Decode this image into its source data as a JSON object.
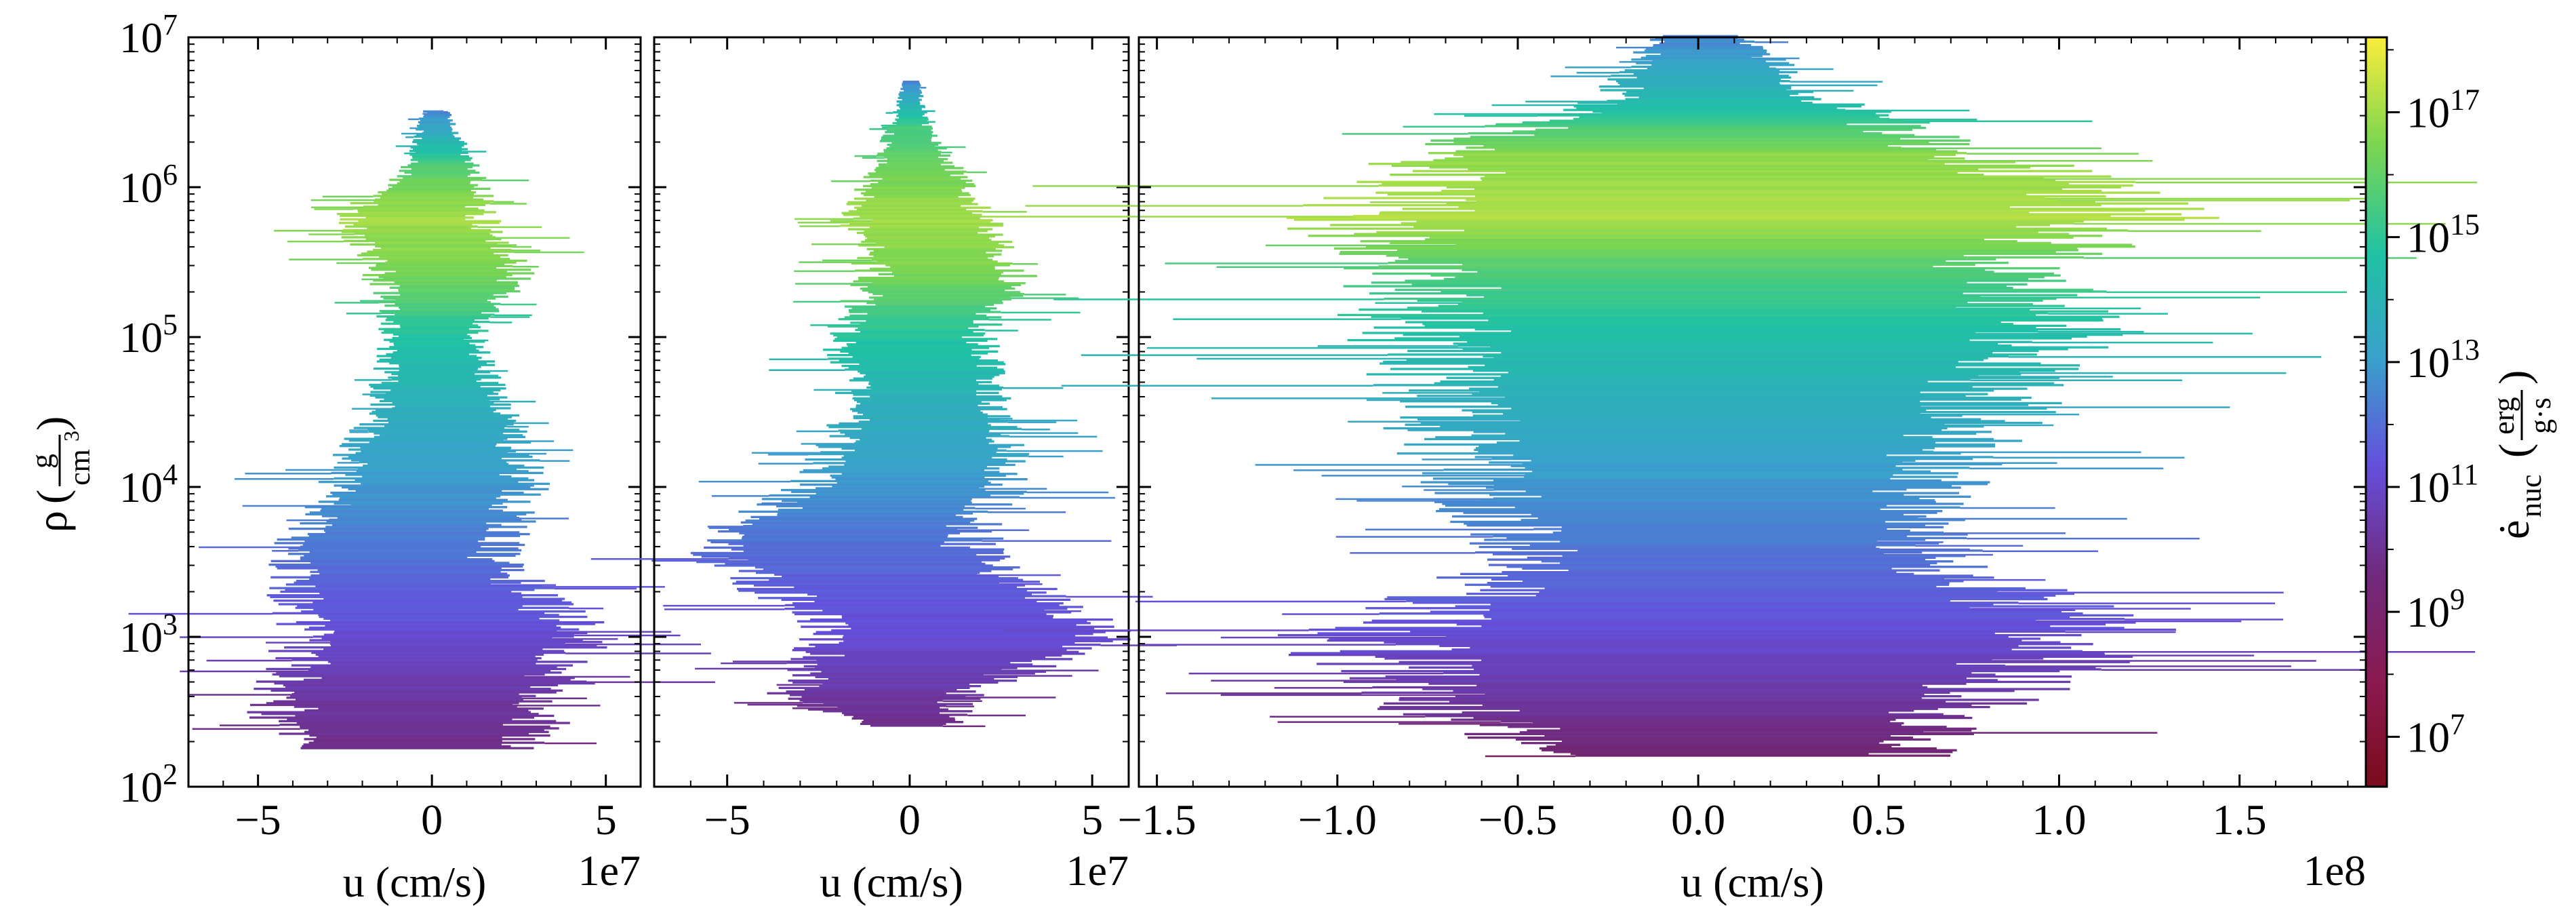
{
  "chart_data": {
    "type": "scatter",
    "description_kind": "2D histogram of density vs radial velocity colored by nuclear energy generation rate",
    "panels": [
      {
        "name": "left",
        "xlim": [
          -70000000.0,
          60000000.0
        ],
        "xticks": [
          -50000000.0,
          0,
          50000000.0
        ],
        "xticklabels": [
          "−5",
          "0",
          "5"
        ],
        "xlabel": "u  (cm/s)",
        "xoffset": "1e7",
        "profile": [
          {
            "logrho": 6.5,
            "lo": -3000000.0,
            "hi": 5000000.0,
            "logc": 11.5
          },
          {
            "logrho": 6.1,
            "lo": -10000000.0,
            "hi": 15000000.0,
            "logc": 15.5
          },
          {
            "logrho": 5.8,
            "lo": -30000000.0,
            "hi": 20000000.0,
            "logc": 16.8
          },
          {
            "logrho": 5.4,
            "lo": -20000000.0,
            "hi": 30000000.0,
            "logc": 16.0
          },
          {
            "logrho": 5.0,
            "lo": -15000000.0,
            "hi": 15000000.0,
            "logc": 14.2
          },
          {
            "logrho": 4.5,
            "lo": -20000000.0,
            "hi": 25000000.0,
            "logc": 13.0
          },
          {
            "logrho": 4.0,
            "lo": -35000000.0,
            "hi": 35000000.0,
            "logc": 12.0
          },
          {
            "logrho": 3.5,
            "lo": -50000000.0,
            "hi": 25000000.0,
            "logc": 11.0
          },
          {
            "logrho": 3.0,
            "lo": -45000000.0,
            "hi": 55000000.0,
            "logc": 10.0
          },
          {
            "logrho": 2.6,
            "lo": -55000000.0,
            "hi": 45000000.0,
            "logc": 9.0
          },
          {
            "logrho": 2.25,
            "lo": -50000000.0,
            "hi": 35000000.0,
            "logc": 8.5
          }
        ]
      },
      {
        "name": "middle",
        "xlim": [
          -70000000.0,
          60000000.0
        ],
        "xticks": [
          -50000000.0,
          0,
          50000000.0
        ],
        "xticklabels": [
          "−5",
          "0",
          "5"
        ],
        "xlabel": "u  (cm/s)",
        "xoffset": "1e7",
        "profile": [
          {
            "logrho": 6.7,
            "lo": -2000000.0,
            "hi": 3000000.0,
            "logc": 11.5
          },
          {
            "logrho": 6.4,
            "lo": -6000000.0,
            "hi": 6000000.0,
            "logc": 15.0
          },
          {
            "logrho": 5.8,
            "lo": -20000000.0,
            "hi": 25000000.0,
            "logc": 16.8
          },
          {
            "logrho": 5.4,
            "lo": -15000000.0,
            "hi": 35000000.0,
            "logc": 16.0
          },
          {
            "logrho": 5.0,
            "lo": -25000000.0,
            "hi": 25000000.0,
            "logc": 14.3
          },
          {
            "logrho": 4.5,
            "lo": -20000000.0,
            "hi": 30000000.0,
            "logc": 13.0
          },
          {
            "logrho": 4.0,
            "lo": -35000000.0,
            "hi": 35000000.0,
            "logc": 12.0
          },
          {
            "logrho": 3.6,
            "lo": -65000000.0,
            "hi": 25000000.0,
            "logc": 11.0
          },
          {
            "logrho": 3.0,
            "lo": -30000000.0,
            "hi": 65000000.0,
            "logc": 10.0
          },
          {
            "logrho": 2.6,
            "lo": -40000000.0,
            "hi": 20000000.0,
            "logc": 9.0
          },
          {
            "logrho": 2.4,
            "lo": -15000000.0,
            "hi": 15000000.0,
            "logc": 8.5
          }
        ]
      },
      {
        "name": "right",
        "xlim": [
          -155000000.0,
          185000000.0
        ],
        "xticks": [
          -150000000.0,
          -100000000.0,
          -50000000.0,
          0,
          50000000.0,
          100000000.0,
          150000000.0
        ],
        "xticklabels": [
          "−1.5",
          "−1.0",
          "−0.5",
          "0.0",
          "0.5",
          "1.0",
          "1.5"
        ],
        "xlabel": "u  (cm/s)",
        "xoffset": "1e8",
        "profile": [
          {
            "logrho": 7.0,
            "lo": -15000000.0,
            "hi": 15000000.0,
            "logc": 11.5
          },
          {
            "logrho": 6.6,
            "lo": -30000000.0,
            "hi": 40000000.0,
            "logc": 13.5
          },
          {
            "logrho": 6.2,
            "lo": -90000000.0,
            "hi": 100000000.0,
            "logc": 16.5
          },
          {
            "logrho": 5.8,
            "lo": -120000000.0,
            "hi": 150000000.0,
            "logc": 17.0
          },
          {
            "logrho": 5.5,
            "lo": -100000000.0,
            "hi": 110000000.0,
            "logc": 15.5
          },
          {
            "logrho": 5.0,
            "lo": -100000000.0,
            "hi": 120000000.0,
            "logc": 14.0
          },
          {
            "logrho": 4.5,
            "lo": -90000000.0,
            "hi": 100000000.0,
            "logc": 13.0
          },
          {
            "logrho": 4.0,
            "lo": -80000000.0,
            "hi": 80000000.0,
            "logc": 12.0
          },
          {
            "logrho": 3.5,
            "lo": -60000000.0,
            "hi": 80000000.0,
            "logc": 11.0
          },
          {
            "logrho": 3.0,
            "lo": -120000000.0,
            "hi": 140000000.0,
            "logc": 10.0
          },
          {
            "logrho": 2.6,
            "lo": -100000000.0,
            "hi": 100000000.0,
            "logc": 9.0
          },
          {
            "logrho": 2.2,
            "lo": -50000000.0,
            "hi": 70000000.0,
            "logc": 8.0
          }
        ]
      }
    ],
    "y_axis": {
      "scale": "log",
      "ylim": [
        100,
        10000000
      ],
      "ticks": [
        {
          "base": "10",
          "exp": "2"
        },
        {
          "base": "10",
          "exp": "3"
        },
        {
          "base": "10",
          "exp": "4"
        },
        {
          "base": "10",
          "exp": "5"
        },
        {
          "base": "10",
          "exp": "6"
        },
        {
          "base": "10",
          "exp": "7"
        }
      ],
      "label_symbol": "ρ",
      "label_num": "g",
      "label_den": "cm",
      "label_den_exp": "3"
    },
    "colorbar": {
      "scale": "log",
      "range_log": [
        6.2,
        18.2
      ],
      "ticks": [
        {
          "base": "10",
          "exp": "7"
        },
        {
          "base": "10",
          "exp": "9"
        },
        {
          "base": "10",
          "exp": "11"
        },
        {
          "base": "10",
          "exp": "13"
        },
        {
          "base": "10",
          "exp": "15"
        },
        {
          "base": "10",
          "exp": "17"
        }
      ],
      "label_symbol": "ė",
      "label_sub": "nuc",
      "label_num": "erg",
      "label_den": "g·s",
      "colors": [
        "#7a0c1c",
        "#71297c",
        "#6450dc",
        "#3aa0cc",
        "#20c2a4",
        "#7ed650",
        "#fbed3c"
      ]
    }
  }
}
